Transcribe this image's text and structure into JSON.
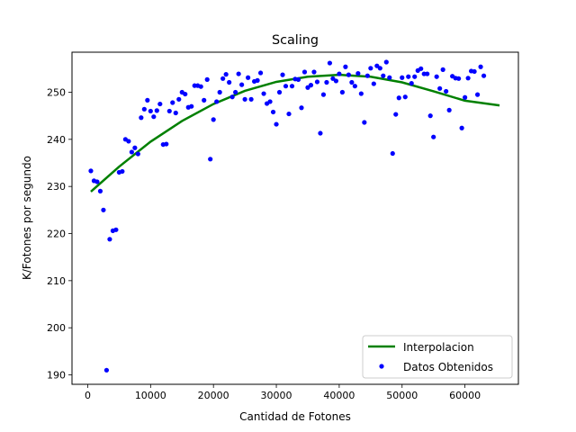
{
  "chart_data": {
    "type": "scatter",
    "title": "Scaling",
    "xlabel": "Cantidad de Fotones",
    "ylabel": "K/Fotones por segundo",
    "xlim": [
      -2500,
      68500
    ],
    "ylim": [
      188,
      258.5
    ],
    "xticks": [
      0,
      10000,
      20000,
      30000,
      40000,
      50000,
      60000
    ],
    "xtick_labels": [
      "0",
      "10000",
      "20000",
      "30000",
      "40000",
      "50000",
      "60000"
    ],
    "yticks": [
      190,
      200,
      210,
      220,
      230,
      240,
      250
    ],
    "ytick_labels": [
      "190",
      "200",
      "210",
      "220",
      "230",
      "240",
      "250"
    ],
    "grid": false,
    "legend_position": "lower-right",
    "series": [
      {
        "name": "Interpolacion",
        "kind": "line",
        "color": "#008000",
        "x": [
          500,
          5000,
          10000,
          15000,
          20000,
          25000,
          30000,
          35000,
          40000,
          45000,
          50000,
          55000,
          60000,
          65500
        ],
        "y": [
          228.9,
          234.2,
          239.5,
          243.9,
          247.5,
          250.3,
          252.2,
          253.3,
          253.7,
          253.3,
          252.1,
          250.2,
          248.2,
          247.2
        ]
      },
      {
        "name": "Datos Obtenidos",
        "kind": "scatter",
        "color": "#0000ff",
        "points": [
          [
            500,
            233.3
          ],
          [
            1000,
            231.2
          ],
          [
            1500,
            231.0
          ],
          [
            2000,
            229.0
          ],
          [
            2500,
            225.0
          ],
          [
            3000,
            191.0
          ],
          [
            3500,
            218.8
          ],
          [
            4000,
            220.6
          ],
          [
            4500,
            220.8
          ],
          [
            5000,
            233.0
          ],
          [
            5500,
            233.2
          ],
          [
            6000,
            240.0
          ],
          [
            6500,
            239.6
          ],
          [
            7000,
            237.3
          ],
          [
            7500,
            238.2
          ],
          [
            8000,
            236.9
          ],
          [
            8500,
            244.6
          ],
          [
            9000,
            246.4
          ],
          [
            9500,
            248.3
          ],
          [
            10000,
            246.0
          ],
          [
            10500,
            244.8
          ],
          [
            11000,
            246.1
          ],
          [
            11500,
            247.5
          ],
          [
            12000,
            238.9
          ],
          [
            12500,
            239.0
          ],
          [
            13000,
            246.0
          ],
          [
            13500,
            247.8
          ],
          [
            14000,
            245.6
          ],
          [
            14500,
            248.5
          ],
          [
            15000,
            250.0
          ],
          [
            15500,
            249.6
          ],
          [
            16000,
            246.8
          ],
          [
            16500,
            247.0
          ],
          [
            17000,
            251.4
          ],
          [
            17500,
            251.4
          ],
          [
            18000,
            251.2
          ],
          [
            18500,
            248.3
          ],
          [
            19000,
            252.7
          ],
          [
            19500,
            235.8
          ],
          [
            20000,
            244.2
          ],
          [
            20500,
            248.0
          ],
          [
            21000,
            250.0
          ],
          [
            21500,
            252.9
          ],
          [
            22000,
            253.8
          ],
          [
            22500,
            252.1
          ],
          [
            23000,
            249.0
          ],
          [
            23500,
            250.0
          ],
          [
            24000,
            253.9
          ],
          [
            24500,
            251.6
          ],
          [
            25000,
            248.5
          ],
          [
            25500,
            253.1
          ],
          [
            26000,
            248.5
          ],
          [
            26500,
            252.3
          ],
          [
            27000,
            252.5
          ],
          [
            27500,
            254.1
          ],
          [
            28000,
            249.7
          ],
          [
            28500,
            247.6
          ],
          [
            29000,
            248.0
          ],
          [
            29500,
            245.8
          ],
          [
            30000,
            243.2
          ],
          [
            30500,
            250.0
          ],
          [
            31000,
            253.7
          ],
          [
            31500,
            251.3
          ],
          [
            32000,
            245.4
          ],
          [
            32500,
            251.3
          ],
          [
            33000,
            252.8
          ],
          [
            33500,
            252.7
          ],
          [
            34000,
            246.7
          ],
          [
            34500,
            254.3
          ],
          [
            35000,
            251.0
          ],
          [
            35500,
            251.5
          ],
          [
            36000,
            254.3
          ],
          [
            36500,
            252.2
          ],
          [
            37000,
            241.3
          ],
          [
            37500,
            249.5
          ],
          [
            38000,
            252.1
          ],
          [
            38500,
            256.2
          ],
          [
            39000,
            252.9
          ],
          [
            39500,
            252.4
          ],
          [
            40000,
            253.9
          ],
          [
            40500,
            250.0
          ],
          [
            41000,
            255.4
          ],
          [
            41500,
            253.7
          ],
          [
            42000,
            252.1
          ],
          [
            42500,
            251.3
          ],
          [
            43000,
            254.0
          ],
          [
            43500,
            249.7
          ],
          [
            44000,
            243.6
          ],
          [
            44500,
            253.5
          ],
          [
            45000,
            255.1
          ],
          [
            45500,
            251.8
          ],
          [
            46000,
            255.6
          ],
          [
            46500,
            255.1
          ],
          [
            47000,
            253.5
          ],
          [
            47500,
            256.4
          ],
          [
            48000,
            253.1
          ],
          [
            48500,
            237.0
          ],
          [
            49000,
            245.3
          ],
          [
            49500,
            248.8
          ],
          [
            50000,
            253.1
          ],
          [
            50500,
            249.0
          ],
          [
            51000,
            253.3
          ],
          [
            51500,
            251.9
          ],
          [
            52000,
            253.3
          ],
          [
            52500,
            254.6
          ],
          [
            53000,
            255.0
          ],
          [
            53500,
            253.9
          ],
          [
            54000,
            253.9
          ],
          [
            54500,
            245.0
          ],
          [
            55000,
            240.5
          ],
          [
            55500,
            253.3
          ],
          [
            56000,
            250.8
          ],
          [
            56500,
            254.8
          ],
          [
            57000,
            250.2
          ],
          [
            57500,
            246.2
          ],
          [
            58000,
            253.4
          ],
          [
            58500,
            253.0
          ],
          [
            59000,
            252.9
          ],
          [
            59500,
            242.4
          ],
          [
            60000,
            248.9
          ],
          [
            60500,
            253.0
          ],
          [
            61000,
            254.5
          ],
          [
            61500,
            254.4
          ],
          [
            62000,
            249.5
          ],
          [
            62500,
            255.4
          ],
          [
            63000,
            253.5
          ]
        ]
      }
    ]
  }
}
